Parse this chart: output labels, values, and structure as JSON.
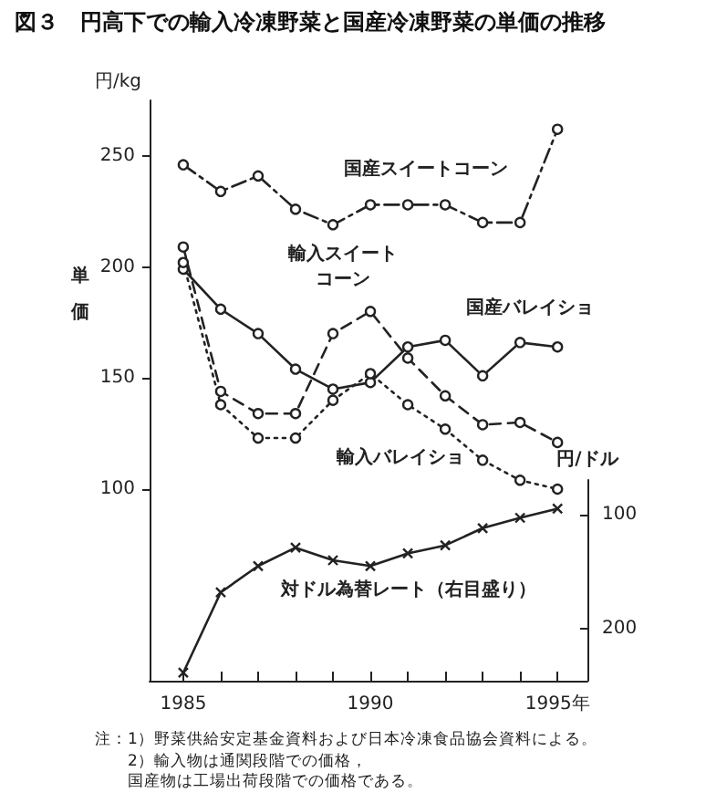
{
  "chart_data": [
    {
      "type": "line",
      "title": "図３　円高下での輸入冷凍野菜と国産冷凍野菜の単価の推移",
      "ylabel": "単価",
      "annotations": [
        "円/kg"
      ],
      "x": [
        1985,
        1986,
        1987,
        1988,
        1989,
        1990,
        1991,
        1992,
        1993,
        1994,
        1995
      ],
      "series": [
        {
          "name": "国産スイートコーン",
          "color": "#222222",
          "line_style": "dashdot",
          "marker": "circle",
          "values": [
            246,
            234,
            241,
            226,
            219,
            228,
            228,
            228,
            220,
            220,
            262
          ]
        },
        {
          "name": "輸入スイートコーン",
          "color": "#222222",
          "line_style": "dashed",
          "marker": "circle",
          "values": [
            209,
            144,
            134,
            134,
            170,
            180,
            159,
            142,
            129,
            130,
            121
          ]
        },
        {
          "name": "国産バレイショ",
          "color": "#222222",
          "line_style": "solid",
          "marker": "circle",
          "values": [
            199,
            181,
            170,
            154,
            145,
            148,
            164,
            167,
            151,
            166,
            164
          ]
        },
        {
          "name": "輸入バレイショ",
          "color": "#222222",
          "line_style": "dotted",
          "marker": "circle",
          "values": [
            202,
            138,
            123,
            123,
            140,
            152,
            138,
            127,
            113,
            104,
            100
          ]
        }
      ],
      "ylim": [
        100,
        275
      ],
      "yticks": [
        100,
        150,
        200,
        250
      ],
      "tick_labels": "y",
      "grid": false,
      "legend": false
    },
    {
      "type": "line",
      "ylabel": "円/ドル",
      "annotations": [
        "注：1）野菜供給安定基金資料および日本冷凍食品協会資料による。",
        "2）輸入物は通関段階での価格，国産物は工場出荷段階での価格である。"
      ],
      "x": [
        1985,
        1986,
        1987,
        1988,
        1989,
        1990,
        1991,
        1992,
        1993,
        1994,
        1995
      ],
      "series": [
        {
          "name": "対ドル為替レート（右目盛り）",
          "color": "#222222",
          "line_style": "solid",
          "marker": "cross",
          "values": [
            238,
            168,
            145,
            129,
            140,
            145,
            134,
            127,
            112,
            103,
            95
          ]
        }
      ],
      "xlim": [
        1984.1,
        1995.8
      ],
      "xticks": [
        {
          "value": 1985,
          "label": "1985"
        },
        {
          "value": 1986,
          "label": null
        },
        {
          "value": 1987,
          "label": null
        },
        {
          "value": 1988,
          "label": null
        },
        {
          "value": 1989,
          "label": null
        },
        {
          "value": 1990,
          "label": "1990"
        },
        {
          "value": 1991,
          "label": null
        },
        {
          "value": 1992,
          "label": null
        },
        {
          "value": 1993,
          "label": null
        },
        {
          "value": 1994,
          "label": null
        },
        {
          "value": 1995,
          "label": "1995年"
        }
      ],
      "ylim": [
        245,
        70
      ],
      "yticks": [
        100,
        200
      ],
      "grid": false,
      "legend": false
    }
  ]
}
